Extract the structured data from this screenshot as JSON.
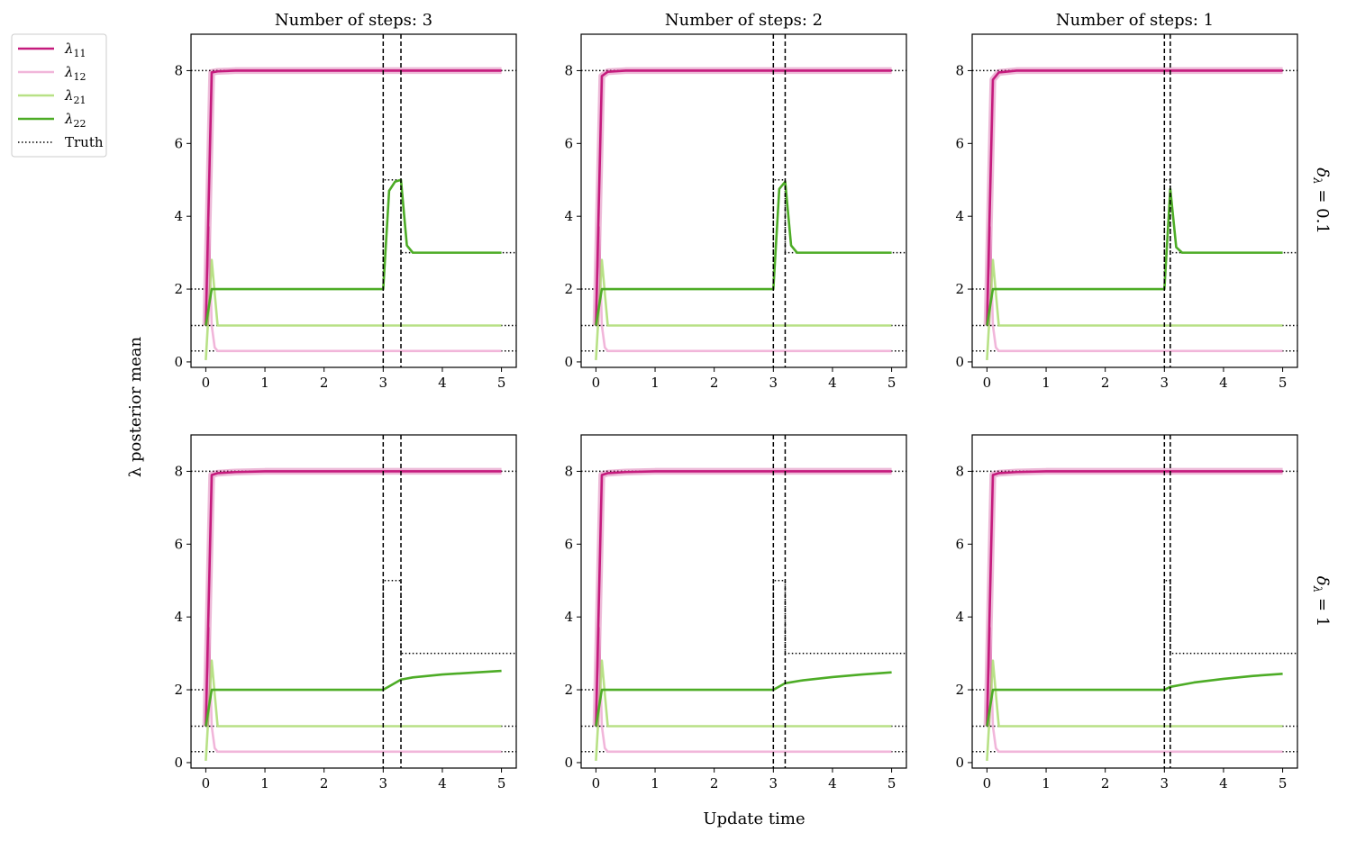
{
  "figure": {
    "ylabel": "λ posterior mean",
    "xlabel": "Update time",
    "column_titles": [
      "Number of steps: 3",
      "Number of steps: 2",
      "Number of steps: 1"
    ],
    "row_labels": [
      "δλ = 0.1",
      "δλ = 1"
    ],
    "row_labels_parts": [
      {
        "sym": "δ",
        "sub": "λ",
        "rest": " = 0.1"
      },
      {
        "sym": "δ",
        "sub": "λ",
        "rest": " = 1"
      }
    ],
    "legend": [
      {
        "name": "λ11",
        "sym": "λ",
        "sub": "11",
        "color": "#c51b7d",
        "style": "solid"
      },
      {
        "name": "λ12",
        "sym": "λ",
        "sub": "12",
        "color": "#f1b6da",
        "style": "solid"
      },
      {
        "name": "λ21",
        "sym": "λ",
        "sub": "21",
        "color": "#b8e186",
        "style": "solid"
      },
      {
        "name": "λ22",
        "sym": "λ",
        "sub": "22",
        "color": "#4dac26",
        "style": "solid"
      },
      {
        "name": "Truth",
        "sym": "Truth",
        "sub": "",
        "color": "#000000",
        "style": "dotted"
      }
    ],
    "colors": {
      "lam11": "#c51b7d",
      "lam12": "#f1b6da",
      "lam21": "#b8e186",
      "lam22": "#4dac26",
      "truth": "#000000"
    }
  },
  "chart_data": [
    {
      "type": "line",
      "row": 0,
      "col": 0,
      "title": "Number of steps: 3",
      "xlim": [
        -0.25,
        5.25
      ],
      "ylim": [
        -0.15,
        9.0
      ],
      "xticks": [
        0,
        1,
        2,
        3,
        4,
        5
      ],
      "yticks": [
        0,
        2,
        4,
        6,
        8
      ],
      "vlines": [
        3.0,
        3.3
      ],
      "series": [
        {
          "name": "λ11",
          "x": [
            0,
            0.1,
            0.2,
            0.5,
            1,
            2,
            3,
            4,
            5
          ],
          "y": [
            1.0,
            7.95,
            7.98,
            8.0,
            8.0,
            8.0,
            8.0,
            8.0,
            8.0
          ]
        },
        {
          "name": "λ12",
          "x": [
            0,
            0.05,
            0.1,
            0.15,
            0.2,
            0.5,
            1,
            5
          ],
          "y": [
            1.0,
            3.7,
            1.0,
            0.4,
            0.3,
            0.3,
            0.3,
            0.3
          ]
        },
        {
          "name": "λ21",
          "x": [
            0,
            0.1,
            0.2,
            0.5,
            1,
            5
          ],
          "y": [
            0.05,
            2.8,
            1.0,
            1.0,
            1.0,
            1.0
          ]
        },
        {
          "name": "λ22",
          "x": [
            0,
            0.1,
            0.2,
            0.5,
            1,
            2,
            3.0,
            3.1,
            3.2,
            3.3,
            3.4,
            3.5,
            4,
            5
          ],
          "y": [
            1.0,
            2.0,
            2.0,
            2.0,
            2.0,
            2.0,
            2.0,
            4.7,
            4.95,
            5.0,
            3.2,
            3.0,
            3.0,
            3.0
          ]
        }
      ],
      "truth": [
        {
          "x": [
            -0.25,
            5.25
          ],
          "y": [
            8,
            8
          ]
        },
        {
          "x": [
            -0.25,
            5.25
          ],
          "y": [
            0.3,
            0.3
          ]
        },
        {
          "x": [
            -0.25,
            5.25
          ],
          "y": [
            1,
            1
          ]
        },
        {
          "x": [
            -0.25,
            3.0,
            3.0,
            3.3,
            3.3,
            5.25
          ],
          "y": [
            2,
            2,
            5,
            5,
            3,
            3
          ]
        }
      ]
    },
    {
      "type": "line",
      "row": 0,
      "col": 1,
      "title": "Number of steps: 2",
      "xlim": [
        -0.25,
        5.25
      ],
      "ylim": [
        -0.15,
        9.0
      ],
      "xticks": [
        0,
        1,
        2,
        3,
        4,
        5
      ],
      "yticks": [
        0,
        2,
        4,
        6,
        8
      ],
      "vlines": [
        3.0,
        3.2
      ],
      "series": [
        {
          "name": "λ11",
          "x": [
            0,
            0.1,
            0.2,
            0.5,
            1,
            2,
            3,
            4,
            5
          ],
          "y": [
            1.0,
            7.85,
            7.97,
            8.0,
            8.0,
            8.0,
            8.0,
            8.0,
            8.0
          ]
        },
        {
          "name": "λ12",
          "x": [
            0,
            0.05,
            0.1,
            0.15,
            0.2,
            0.5,
            1,
            5
          ],
          "y": [
            1.0,
            3.7,
            1.0,
            0.4,
            0.3,
            0.3,
            0.3,
            0.3
          ]
        },
        {
          "name": "λ21",
          "x": [
            0,
            0.1,
            0.2,
            0.5,
            1,
            5
          ],
          "y": [
            0.05,
            2.8,
            1.0,
            1.0,
            1.0,
            1.0
          ]
        },
        {
          "name": "λ22",
          "x": [
            0,
            0.1,
            0.2,
            0.5,
            1,
            2,
            3.0,
            3.1,
            3.2,
            3.3,
            3.4,
            4,
            5
          ],
          "y": [
            1.0,
            2.0,
            2.0,
            2.0,
            2.0,
            2.0,
            2.0,
            4.75,
            4.95,
            3.2,
            3.0,
            3.0,
            3.0
          ]
        }
      ],
      "truth": [
        {
          "x": [
            -0.25,
            5.25
          ],
          "y": [
            8,
            8
          ]
        },
        {
          "x": [
            -0.25,
            5.25
          ],
          "y": [
            0.3,
            0.3
          ]
        },
        {
          "x": [
            -0.25,
            5.25
          ],
          "y": [
            1,
            1
          ]
        },
        {
          "x": [
            -0.25,
            3.0,
            3.0,
            3.2,
            3.2,
            5.25
          ],
          "y": [
            2,
            2,
            5,
            5,
            3,
            3
          ]
        }
      ]
    },
    {
      "type": "line",
      "row": 0,
      "col": 2,
      "title": "Number of steps: 1",
      "xlim": [
        -0.25,
        5.25
      ],
      "ylim": [
        -0.15,
        9.0
      ],
      "xticks": [
        0,
        1,
        2,
        3,
        4,
        5
      ],
      "yticks": [
        0,
        2,
        4,
        6,
        8
      ],
      "vlines": [
        3.0,
        3.1
      ],
      "series": [
        {
          "name": "λ11",
          "x": [
            0,
            0.1,
            0.2,
            0.5,
            1,
            2,
            3,
            4,
            5
          ],
          "y": [
            1.0,
            7.75,
            7.95,
            8.0,
            8.0,
            8.0,
            8.0,
            8.0,
            8.0
          ]
        },
        {
          "name": "λ12",
          "x": [
            0,
            0.05,
            0.1,
            0.15,
            0.2,
            0.5,
            1,
            5
          ],
          "y": [
            1.0,
            3.7,
            1.0,
            0.4,
            0.3,
            0.3,
            0.3,
            0.3
          ]
        },
        {
          "name": "λ21",
          "x": [
            0,
            0.1,
            0.2,
            0.5,
            1,
            5
          ],
          "y": [
            0.05,
            2.8,
            1.0,
            1.0,
            1.0,
            1.0
          ]
        },
        {
          "name": "λ22",
          "x": [
            0,
            0.1,
            0.2,
            0.5,
            1,
            2,
            3.0,
            3.1,
            3.2,
            3.3,
            4,
            5
          ],
          "y": [
            1.0,
            2.0,
            2.0,
            2.0,
            2.0,
            2.0,
            2.0,
            4.75,
            3.15,
            3.0,
            3.0,
            3.0
          ]
        }
      ],
      "truth": [
        {
          "x": [
            -0.25,
            5.25
          ],
          "y": [
            8,
            8
          ]
        },
        {
          "x": [
            -0.25,
            5.25
          ],
          "y": [
            0.3,
            0.3
          ]
        },
        {
          "x": [
            -0.25,
            5.25
          ],
          "y": [
            1,
            1
          ]
        },
        {
          "x": [
            -0.25,
            3.0,
            3.0,
            3.1,
            3.1,
            5.25
          ],
          "y": [
            2,
            2,
            5,
            5,
            3,
            3
          ]
        }
      ]
    },
    {
      "type": "line",
      "row": 1,
      "col": 0,
      "title": "",
      "xlim": [
        -0.25,
        5.25
      ],
      "ylim": [
        -0.15,
        9.0
      ],
      "xticks": [
        0,
        1,
        2,
        3,
        4,
        5
      ],
      "yticks": [
        0,
        2,
        4,
        6,
        8
      ],
      "vlines": [
        3.0,
        3.3
      ],
      "series": [
        {
          "name": "λ11",
          "x": [
            0,
            0.1,
            0.2,
            0.5,
            1,
            2,
            3,
            4,
            5
          ],
          "y": [
            1.0,
            7.9,
            7.95,
            7.98,
            8.0,
            8.0,
            8.0,
            8.0,
            8.0
          ]
        },
        {
          "name": "λ12",
          "x": [
            0,
            0.05,
            0.1,
            0.15,
            0.2,
            0.5,
            1,
            5
          ],
          "y": [
            1.0,
            3.7,
            1.0,
            0.4,
            0.3,
            0.3,
            0.3,
            0.3
          ]
        },
        {
          "name": "λ21",
          "x": [
            0,
            0.1,
            0.2,
            0.5,
            1,
            5
          ],
          "y": [
            0.05,
            2.8,
            1.0,
            1.0,
            1.0,
            1.0
          ]
        },
        {
          "name": "λ22",
          "x": [
            0,
            0.1,
            0.2,
            0.5,
            1,
            2,
            3.0,
            3.3,
            3.5,
            4,
            4.5,
            5
          ],
          "y": [
            1.0,
            2.0,
            2.0,
            2.0,
            2.0,
            2.0,
            2.0,
            2.28,
            2.34,
            2.42,
            2.47,
            2.52
          ]
        }
      ],
      "truth": [
        {
          "x": [
            -0.25,
            5.25
          ],
          "y": [
            8,
            8
          ]
        },
        {
          "x": [
            -0.25,
            5.25
          ],
          "y": [
            0.3,
            0.3
          ]
        },
        {
          "x": [
            -0.25,
            5.25
          ],
          "y": [
            1,
            1
          ]
        },
        {
          "x": [
            -0.25,
            3.0,
            3.0,
            3.3,
            3.3,
            5.25
          ],
          "y": [
            2,
            2,
            5,
            5,
            3,
            3
          ]
        }
      ]
    },
    {
      "type": "line",
      "row": 1,
      "col": 1,
      "title": "",
      "xlim": [
        -0.25,
        5.25
      ],
      "ylim": [
        -0.15,
        9.0
      ],
      "xticks": [
        0,
        1,
        2,
        3,
        4,
        5
      ],
      "yticks": [
        0,
        2,
        4,
        6,
        8
      ],
      "vlines": [
        3.0,
        3.2
      ],
      "series": [
        {
          "name": "λ11",
          "x": [
            0,
            0.1,
            0.2,
            0.5,
            1,
            2,
            3,
            4,
            5
          ],
          "y": [
            1.0,
            7.9,
            7.95,
            7.98,
            8.0,
            8.0,
            8.0,
            8.0,
            8.0
          ]
        },
        {
          "name": "λ12",
          "x": [
            0,
            0.05,
            0.1,
            0.15,
            0.2,
            0.5,
            1,
            5
          ],
          "y": [
            1.0,
            3.7,
            1.0,
            0.4,
            0.3,
            0.3,
            0.3,
            0.3
          ]
        },
        {
          "name": "λ21",
          "x": [
            0,
            0.1,
            0.2,
            0.5,
            1,
            5
          ],
          "y": [
            0.05,
            2.8,
            1.0,
            1.0,
            1.0,
            1.0
          ]
        },
        {
          "name": "λ22",
          "x": [
            0,
            0.1,
            0.2,
            0.5,
            1,
            2,
            3.0,
            3.2,
            3.5,
            4,
            4.5,
            5
          ],
          "y": [
            1.0,
            2.0,
            2.0,
            2.0,
            2.0,
            2.0,
            2.0,
            2.18,
            2.26,
            2.35,
            2.42,
            2.48
          ]
        }
      ],
      "truth": [
        {
          "x": [
            -0.25,
            5.25
          ],
          "y": [
            8,
            8
          ]
        },
        {
          "x": [
            -0.25,
            5.25
          ],
          "y": [
            0.3,
            0.3
          ]
        },
        {
          "x": [
            -0.25,
            5.25
          ],
          "y": [
            1,
            1
          ]
        },
        {
          "x": [
            -0.25,
            3.0,
            3.0,
            3.2,
            3.2,
            5.25
          ],
          "y": [
            2,
            2,
            5,
            5,
            3,
            3
          ]
        }
      ]
    },
    {
      "type": "line",
      "row": 1,
      "col": 2,
      "title": "",
      "xlim": [
        -0.25,
        5.25
      ],
      "ylim": [
        -0.15,
        9.0
      ],
      "xticks": [
        0,
        1,
        2,
        3,
        4,
        5
      ],
      "yticks": [
        0,
        2,
        4,
        6,
        8
      ],
      "vlines": [
        3.0,
        3.1
      ],
      "series": [
        {
          "name": "λ11",
          "x": [
            0,
            0.1,
            0.2,
            0.5,
            1,
            2,
            3,
            4,
            5
          ],
          "y": [
            1.0,
            7.9,
            7.95,
            7.98,
            8.0,
            8.0,
            8.0,
            8.0,
            8.0
          ]
        },
        {
          "name": "λ12",
          "x": [
            0,
            0.05,
            0.1,
            0.15,
            0.2,
            0.5,
            1,
            5
          ],
          "y": [
            1.0,
            3.7,
            1.0,
            0.4,
            0.3,
            0.3,
            0.3,
            0.3
          ]
        },
        {
          "name": "λ21",
          "x": [
            0,
            0.1,
            0.2,
            0.5,
            1,
            5
          ],
          "y": [
            0.05,
            2.8,
            1.0,
            1.0,
            1.0,
            1.0
          ]
        },
        {
          "name": "λ22",
          "x": [
            0,
            0.1,
            0.2,
            0.5,
            1,
            2,
            3.0,
            3.1,
            3.5,
            4,
            4.5,
            5
          ],
          "y": [
            1.0,
            2.0,
            2.0,
            2.0,
            2.0,
            2.0,
            2.0,
            2.08,
            2.2,
            2.3,
            2.38,
            2.44
          ]
        }
      ],
      "truth": [
        {
          "x": [
            -0.25,
            5.25
          ],
          "y": [
            8,
            8
          ]
        },
        {
          "x": [
            -0.25,
            5.25
          ],
          "y": [
            0.3,
            0.3
          ]
        },
        {
          "x": [
            -0.25,
            5.25
          ],
          "y": [
            1,
            1
          ]
        },
        {
          "x": [
            -0.25,
            3.0,
            3.0,
            3.1,
            3.1,
            5.25
          ],
          "y": [
            2,
            2,
            5,
            5,
            3,
            3
          ]
        }
      ]
    }
  ]
}
